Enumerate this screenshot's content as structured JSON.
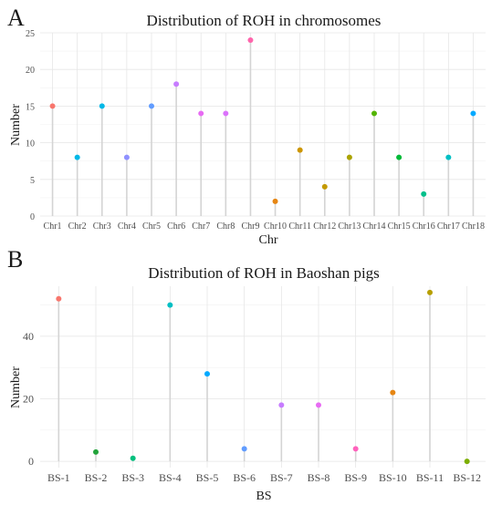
{
  "chart_data": [
    {
      "panel": "A",
      "type": "lollipop",
      "title": "Distribution of ROH in chromosomes",
      "xlabel": "Chr",
      "ylabel": "Number",
      "ylim": [
        0,
        25
      ],
      "yticks": [
        0,
        5,
        10,
        15,
        20,
        25
      ],
      "grid": true,
      "categories": [
        "Chr1",
        "Chr2",
        "Chr3",
        "Chr4",
        "Chr5",
        "Chr6",
        "Chr7",
        "Chr8",
        "Chr9",
        "Chr10",
        "Chr11",
        "Chr12",
        "Chr13",
        "Chr14",
        "Chr15",
        "Chr16",
        "Chr17",
        "Chr18"
      ],
      "values": [
        15,
        8,
        15,
        8,
        15,
        18,
        14,
        14,
        24,
        2,
        9,
        4,
        8,
        14,
        8,
        3,
        8,
        14
      ],
      "colors": [
        "#F8766D",
        "#00B8E7",
        "#00B8E7",
        "#8F91FF",
        "#619CFF",
        "#C77CFF",
        "#E76BF3",
        "#DB72FB",
        "#FF65AC",
        "#E68613",
        "#CD9600",
        "#C49A00",
        "#ABA300",
        "#53B400",
        "#00BA38",
        "#00C08B",
        "#00BFC4",
        "#00A9FF"
      ]
    },
    {
      "panel": "B",
      "type": "lollipop",
      "title": "Distribution of ROH in Baoshan pigs",
      "xlabel": "BS",
      "ylabel": "Number",
      "ylim": [
        -2,
        56
      ],
      "yticks": [
        0,
        20,
        40
      ],
      "grid": true,
      "categories": [
        "BS-1",
        "BS-2",
        "BS-3",
        "BS-4",
        "BS-5",
        "BS-6",
        "BS-7",
        "BS-8",
        "BS-9",
        "BS-10",
        "BS-11",
        "BS-12"
      ],
      "values": [
        52,
        3,
        1,
        50,
        28,
        4,
        18,
        18,
        4,
        22,
        54,
        0
      ],
      "colors": [
        "#F8766D",
        "#22A33A",
        "#00BF7D",
        "#00BFC4",
        "#00A9FF",
        "#619CFF",
        "#C77CFF",
        "#E76BF3",
        "#FF62BC",
        "#E68613",
        "#B79F00",
        "#7CAE00"
      ]
    }
  ]
}
